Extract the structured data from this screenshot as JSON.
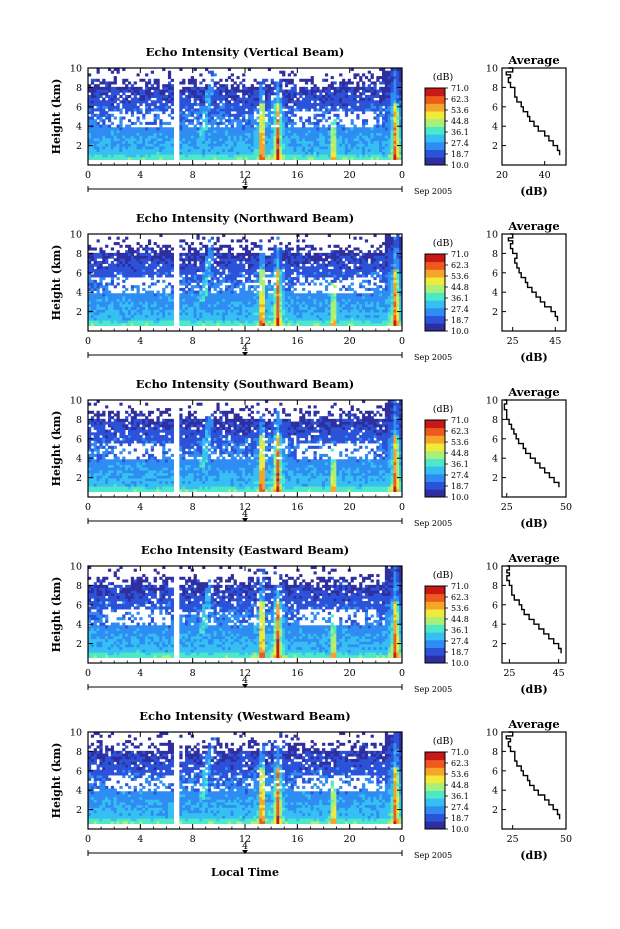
{
  "figure": {
    "date_label": "Sep 2005",
    "xlabel": "Local Time",
    "colorbar_unit": "(dB)",
    "colorbar_ticks": [
      "71.0",
      "62.3",
      "53.6",
      "44.8",
      "36.1",
      "27.4",
      "18.7",
      "10.0"
    ],
    "colormap": [
      "#2e2e9e",
      "#2b52d9",
      "#2f8cf2",
      "#36bff2",
      "#4de8c8",
      "#a8f07a",
      "#f2ea3a",
      "#f6a52b",
      "#ee5a1e",
      "#c81818"
    ],
    "average_title": "Average",
    "average_xlabel": "(dB)"
  },
  "chart_data": [
    {
      "type": "heatmap",
      "title": "Echo Intensity (Vertical Beam)",
      "ylabel": "Height (km)",
      "xlim": [
        0,
        24
      ],
      "ylim": [
        0,
        10
      ],
      "xticks": [
        "0",
        "4",
        "8",
        "12",
        "16",
        "20",
        "0"
      ],
      "yticks": [
        "2",
        "4",
        "6",
        "8",
        "10"
      ],
      "day_marker": "4",
      "clim": [
        10.0,
        71.0
      ],
      "data_gap_hours": [
        6.6,
        6.9
      ],
      "bright_columns_hours": [
        13.3,
        14.5,
        23.5
      ],
      "average": {
        "xlim": [
          20,
          50
        ],
        "xticks": [
          "20",
          "40"
        ],
        "dB": [
          47,
          46,
          44,
          42,
          40,
          37,
          35,
          33,
          32,
          30,
          29,
          27,
          26,
          26,
          24,
          23,
          24,
          22,
          25,
          23
        ],
        "height_km": [
          1.0,
          1.5,
          2.0,
          2.5,
          3.0,
          3.5,
          4.0,
          4.5,
          5.0,
          5.5,
          6.0,
          6.5,
          7.0,
          7.5,
          8.0,
          8.5,
          9.0,
          9.3,
          9.6,
          10.0
        ]
      }
    },
    {
      "type": "heatmap",
      "title": "Echo Intensity (Northward Beam)",
      "ylabel": "Height (km)",
      "xlim": [
        0,
        24
      ],
      "ylim": [
        0,
        10
      ],
      "xticks": [
        "0",
        "4",
        "8",
        "12",
        "16",
        "20",
        "0"
      ],
      "yticks": [
        "2",
        "4",
        "6",
        "8",
        "10"
      ],
      "day_marker": "4",
      "clim": [
        10.0,
        71.0
      ],
      "data_gap_hours": [
        6.6,
        6.9
      ],
      "bright_columns_hours": [
        13.3,
        14.5,
        23.5
      ],
      "average": {
        "xlim": [
          20,
          50
        ],
        "xticks": [
          "25",
          "45"
        ],
        "dB": [
          46,
          45,
          43,
          40,
          38,
          36,
          34,
          32,
          31,
          29,
          28,
          27,
          26,
          27,
          25,
          24,
          25,
          23,
          25,
          24
        ],
        "height_km": [
          1.0,
          1.5,
          2.0,
          2.5,
          3.0,
          3.5,
          4.0,
          4.5,
          5.0,
          5.5,
          6.0,
          6.5,
          7.0,
          7.5,
          8.0,
          8.5,
          9.0,
          9.3,
          9.6,
          10.0
        ]
      }
    },
    {
      "type": "heatmap",
      "title": "Echo Intensity (Southward Beam)",
      "ylabel": "Height (km)",
      "xlim": [
        0,
        24
      ],
      "ylim": [
        0,
        10
      ],
      "xticks": [
        "0",
        "4",
        "8",
        "12",
        "16",
        "20",
        "0"
      ],
      "yticks": [
        "2",
        "4",
        "6",
        "8",
        "10"
      ],
      "day_marker": "4",
      "clim": [
        10.0,
        71.0
      ],
      "data_gap_hours": [
        6.6,
        6.9
      ],
      "bright_columns_hours": [
        13.3,
        14.5,
        23.5
      ],
      "average": {
        "xlim": [
          23,
          50
        ],
        "xticks": [
          "25",
          "50"
        ],
        "dB": [
          47,
          45,
          43,
          41,
          39,
          37,
          35,
          33,
          32,
          30,
          29,
          28,
          27,
          26,
          25,
          25,
          24,
          24,
          25,
          24
        ],
        "height_km": [
          1.0,
          1.5,
          2.0,
          2.5,
          3.0,
          3.5,
          4.0,
          4.5,
          5.0,
          5.5,
          6.0,
          6.5,
          7.0,
          7.5,
          8.0,
          8.5,
          9.0,
          9.3,
          9.6,
          10.0
        ]
      }
    },
    {
      "type": "heatmap",
      "title": "Echo Intensity (Eastward Beam)",
      "ylabel": "Height (km)",
      "xlim": [
        0,
        24
      ],
      "ylim": [
        0,
        10
      ],
      "xticks": [
        "0",
        "4",
        "8",
        "12",
        "16",
        "20",
        "0"
      ],
      "yticks": [
        "2",
        "4",
        "6",
        "8",
        "10"
      ],
      "day_marker": "4",
      "clim": [
        10.0,
        71.0
      ],
      "data_gap_hours": [
        6.6,
        6.9
      ],
      "bright_columns_hours": [
        13.3,
        14.5,
        23.5
      ],
      "average": {
        "xlim": [
          22,
          48
        ],
        "xticks": [
          "25",
          "45"
        ],
        "dB": [
          46,
          45,
          43,
          41,
          39,
          37,
          35,
          33,
          31,
          30,
          29,
          27,
          26,
          26,
          25,
          24,
          25,
          24,
          25,
          24
        ],
        "height_km": [
          1.0,
          1.5,
          2.0,
          2.5,
          3.0,
          3.5,
          4.0,
          4.5,
          5.0,
          5.5,
          6.0,
          6.5,
          7.0,
          7.5,
          8.0,
          8.5,
          9.0,
          9.3,
          9.6,
          10.0
        ]
      }
    },
    {
      "type": "heatmap",
      "title": "Echo Intensity (Westward Beam)",
      "ylabel": "Height (km)",
      "xlim": [
        0,
        24
      ],
      "ylim": [
        0,
        10
      ],
      "xticks": [
        "0",
        "4",
        "8",
        "12",
        "16",
        "20",
        "0"
      ],
      "yticks": [
        "2",
        "4",
        "6",
        "8",
        "10"
      ],
      "day_marker": "4",
      "clim": [
        10.0,
        71.0
      ],
      "data_gap_hours": [
        6.6,
        6.9
      ],
      "bright_columns_hours": [
        13.3,
        14.5,
        23.5
      ],
      "average": {
        "xlim": [
          20,
          50
        ],
        "xticks": [
          "25",
          "50"
        ],
        "dB": [
          47,
          46,
          44,
          42,
          40,
          37,
          35,
          33,
          32,
          30,
          29,
          27,
          26,
          26,
          24,
          23,
          24,
          22,
          25,
          23
        ],
        "height_km": [
          1.0,
          1.5,
          2.0,
          2.5,
          3.0,
          3.5,
          4.0,
          4.5,
          5.0,
          5.5,
          6.0,
          6.5,
          7.0,
          7.5,
          8.0,
          8.5,
          9.0,
          9.3,
          9.6,
          10.0
        ]
      }
    }
  ]
}
